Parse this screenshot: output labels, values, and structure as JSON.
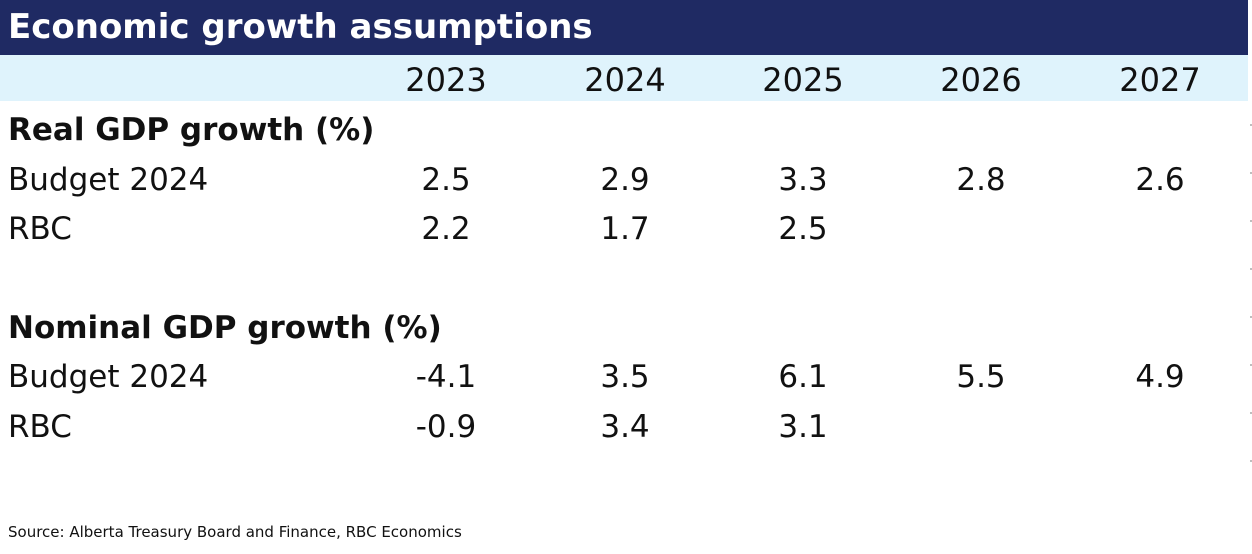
{
  "title": "Economic growth assumptions",
  "years": [
    "2023",
    "2024",
    "2025",
    "2026",
    "2027"
  ],
  "sections": [
    {
      "title": "Real GDP growth (%)",
      "rows": [
        {
          "label": "Budget 2024",
          "values": [
            "2.5",
            "2.9",
            "3.3",
            "2.8",
            "2.6"
          ]
        },
        {
          "label": "RBC",
          "values": [
            "2.2",
            "1.7",
            "2.5",
            "",
            ""
          ]
        }
      ]
    },
    {
      "title": "Nominal GDP growth (%)",
      "rows": [
        {
          "label": "Budget 2024",
          "values": [
            "-4.1",
            "3.5",
            "6.1",
            "5.5",
            "4.9"
          ]
        },
        {
          "label": "RBC",
          "values": [
            "-0.9",
            "3.4",
            "3.1",
            "",
            ""
          ]
        }
      ]
    }
  ],
  "source": "Source: Alberta Treasury Board and Finance, RBC Economics",
  "colors": {
    "title_bg": "#1f2a63",
    "title_text": "#ffffff",
    "header_bg": "#dff3fc"
  }
}
